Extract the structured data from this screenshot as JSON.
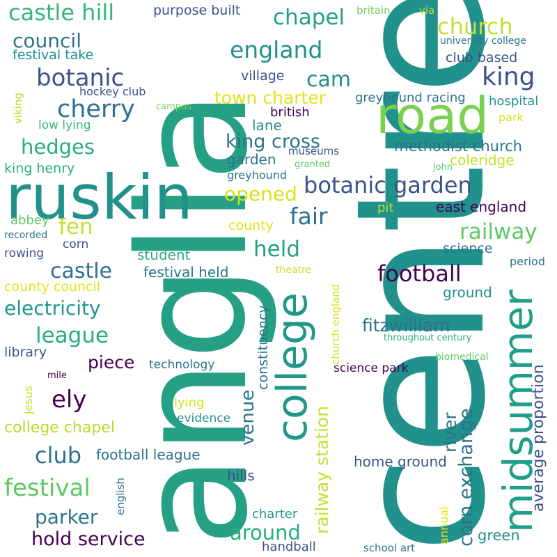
{
  "colors": {
    "background": "#ffffff",
    "palette": [
      "#440154",
      "#3b528b",
      "#21918c",
      "#25a085",
      "#5ec962",
      "#7ad151",
      "#c5e02e",
      "#fde725",
      "#2c728e"
    ]
  },
  "words": [
    {
      "text": "anglia",
      "color": "#25a085"
    },
    {
      "text": "centre",
      "color": "#21918c"
    },
    {
      "text": "ruskin",
      "color": "#21918c"
    },
    {
      "text": "road",
      "color": "#7ad151"
    },
    {
      "text": "college",
      "color": "#1f988b"
    },
    {
      "text": "midsummer",
      "color": "#1f9e89"
    },
    {
      "text": "castle hill",
      "color": "#35b779"
    },
    {
      "text": "purpose built",
      "color": "#3b528b"
    },
    {
      "text": "chapel",
      "color": "#25a085"
    },
    {
      "text": "britain",
      "color": "#6ece58"
    },
    {
      "text": "via",
      "color": "#c5e02e"
    },
    {
      "text": "church",
      "color": "#c5e02e"
    },
    {
      "text": "council",
      "color": "#2c728e"
    },
    {
      "text": "england",
      "color": "#21918c"
    },
    {
      "text": "university college",
      "color": "#2c728e"
    },
    {
      "text": "festival take",
      "color": "#21918c"
    },
    {
      "text": "club based",
      "color": "#3b528b"
    },
    {
      "text": "botanic",
      "color": "#3b528b"
    },
    {
      "text": "cam",
      "color": "#21918c"
    },
    {
      "text": "king",
      "color": "#3b528b"
    },
    {
      "text": "village",
      "color": "#3b528b"
    },
    {
      "text": "hockey club",
      "color": "#3b528b"
    },
    {
      "text": "town charter",
      "color": "#e2e418"
    },
    {
      "text": "greyhound racing",
      "color": "#2c728e"
    },
    {
      "text": "cherry",
      "color": "#2c728e"
    },
    {
      "text": "campus",
      "color": "#7ad151"
    },
    {
      "text": "british",
      "color": "#440154"
    },
    {
      "text": "hospital",
      "color": "#21918c"
    },
    {
      "text": "viking",
      "color": "#b5de2b"
    },
    {
      "text": "low lying",
      "color": "#35b779"
    },
    {
      "text": "lane",
      "color": "#21918c"
    },
    {
      "text": "park",
      "color": "#d8e219"
    },
    {
      "text": "hedges",
      "color": "#29af7f"
    },
    {
      "text": "king cross",
      "color": "#2c728e"
    },
    {
      "text": "methodist church",
      "color": "#2c728e"
    },
    {
      "text": "museums",
      "color": "#3b528b"
    },
    {
      "text": "garden",
      "color": "#2c728e"
    },
    {
      "text": "king henry",
      "color": "#29af7f"
    },
    {
      "text": "granted",
      "color": "#5ec962"
    },
    {
      "text": "coleridge",
      "color": "#c5e02e"
    },
    {
      "text": "greyhound",
      "color": "#2c728e"
    },
    {
      "text": "john",
      "color": "#5ec962"
    },
    {
      "text": "botanic garden",
      "color": "#3b528b"
    },
    {
      "text": "opened",
      "color": "#d8e219"
    },
    {
      "text": "fair",
      "color": "#2c728e"
    },
    {
      "text": "east england",
      "color": "#440154"
    },
    {
      "text": "pit",
      "color": "#c5e02e"
    },
    {
      "text": "fen",
      "color": "#c5e02e"
    },
    {
      "text": "abbey",
      "color": "#5ec962"
    },
    {
      "text": "county",
      "color": "#e2e418"
    },
    {
      "text": "railway",
      "color": "#5ec962"
    },
    {
      "text": "recorded",
      "color": "#2c728e"
    },
    {
      "text": "corn",
      "color": "#3b528b"
    },
    {
      "text": "held",
      "color": "#25a085"
    },
    {
      "text": "science",
      "color": "#2c728e"
    },
    {
      "text": "rowing",
      "color": "#3b528b"
    },
    {
      "text": "student",
      "color": "#29af7f"
    },
    {
      "text": "period",
      "color": "#2c728e"
    },
    {
      "text": "castle",
      "color": "#2c728e"
    },
    {
      "text": "festival held",
      "color": "#2c728e"
    },
    {
      "text": "theatre",
      "color": "#c5e02e"
    },
    {
      "text": "football",
      "color": "#440154"
    },
    {
      "text": "county council",
      "color": "#e2e418"
    },
    {
      "text": "ground",
      "color": "#21918c"
    },
    {
      "text": "electricity",
      "color": "#1f988b"
    },
    {
      "text": "constituency",
      "color": "#2c728e"
    },
    {
      "text": "church england",
      "color": "#d8e219"
    },
    {
      "text": "league",
      "color": "#29af7f"
    },
    {
      "text": "fitzwilliam",
      "color": "#2c728e"
    },
    {
      "text": "throughout century",
      "color": "#29af7f"
    },
    {
      "text": "average proportion",
      "color": "#3b528b"
    },
    {
      "text": "library",
      "color": "#3b528b"
    },
    {
      "text": "piece",
      "color": "#440154"
    },
    {
      "text": "technology",
      "color": "#2c728e"
    },
    {
      "text": "biomedical",
      "color": "#5ec962"
    },
    {
      "text": "mile",
      "color": "#440154"
    },
    {
      "text": "science park",
      "color": "#440154"
    },
    {
      "text": "jesus",
      "color": "#c5e02e"
    },
    {
      "text": "ely",
      "color": "#440154"
    },
    {
      "text": "venue",
      "color": "#2c728e"
    },
    {
      "text": "railway station",
      "color": "#c5e02e"
    },
    {
      "text": "river",
      "color": "#2c728e"
    },
    {
      "text": "corn exchange",
      "color": "#2c728e"
    },
    {
      "text": "lying",
      "color": "#d8e219"
    },
    {
      "text": "college chapel",
      "color": "#b5de2b"
    },
    {
      "text": "evidence",
      "color": "#21918c"
    },
    {
      "text": "club",
      "color": "#2c728e"
    },
    {
      "text": "football league",
      "color": "#2c728e"
    },
    {
      "text": "home ground",
      "color": "#3b528b"
    },
    {
      "text": "english",
      "color": "#2c728e"
    },
    {
      "text": "festival",
      "color": "#5ec962"
    },
    {
      "text": "hills",
      "color": "#3b528b"
    },
    {
      "text": "parker",
      "color": "#2c728e"
    },
    {
      "text": "annual",
      "color": "#e2e418"
    },
    {
      "text": "charter",
      "color": "#1f988b"
    },
    {
      "text": "around",
      "color": "#29af7f"
    },
    {
      "text": "green",
      "color": "#21918c"
    },
    {
      "text": "hold service",
      "color": "#440154"
    },
    {
      "text": "handball",
      "color": "#3b528b"
    },
    {
      "text": "school art",
      "color": "#2c728e"
    }
  ]
}
